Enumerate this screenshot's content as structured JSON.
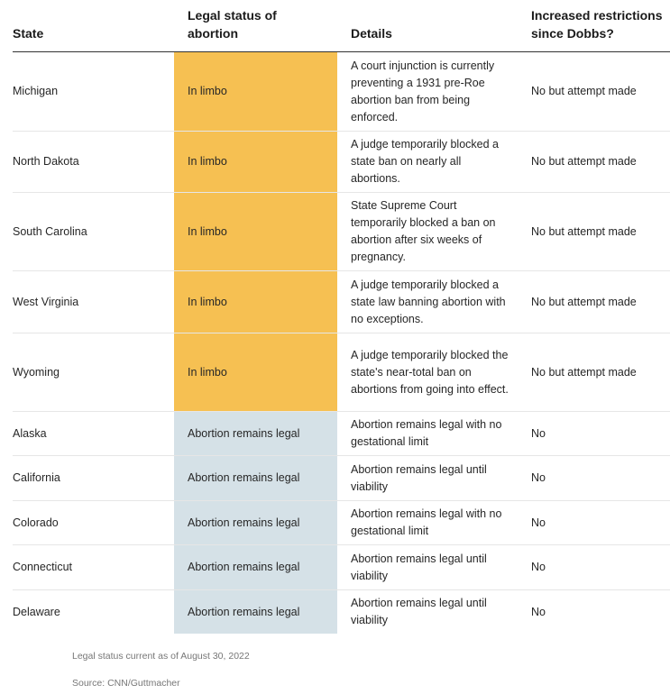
{
  "headers": {
    "state": "State",
    "status": "Legal status of abortion",
    "details": "Details",
    "restrictions": "Increased restrictions since Dobbs?"
  },
  "rows": [
    {
      "state": "Michigan",
      "status": "In limbo",
      "details": "A court injunction is currently preventing a 1931 pre-Roe abortion ban from being enforced.",
      "restrictions": "No but attempt made"
    },
    {
      "state": "North Dakota",
      "status": "In limbo",
      "details": "A judge temporarily blocked a state ban on nearly all abortions.",
      "restrictions": "No but attempt made"
    },
    {
      "state": "South Carolina",
      "status": "In limbo",
      "details": "State Supreme Court temporarily blocked a ban on abortion after six weeks of pregnancy.",
      "restrictions": "No but attempt made"
    },
    {
      "state": "West Virginia",
      "status": "In limbo",
      "details": "A judge temporarily blocked a state law banning abortion with no exceptions.",
      "restrictions": "No but attempt made"
    },
    {
      "state": "Wyoming",
      "status": "In limbo",
      "details": "A judge temporarily blocked the state's near-total ban on abortions from going into effect.",
      "restrictions": "No but attempt made"
    },
    {
      "state": "Alaska",
      "status": "Abortion remains legal",
      "details": "Abortion remains legal with no gestational limit",
      "restrictions": "No"
    },
    {
      "state": "California",
      "status": "Abortion remains legal",
      "details": "Abortion remains legal until viability",
      "restrictions": "No"
    },
    {
      "state": "Colorado",
      "status": "Abortion remains legal",
      "details": "Abortion remains legal with no gestational limit",
      "restrictions": "No"
    },
    {
      "state": "Connecticut",
      "status": "Abortion remains legal",
      "details": "Abortion remains legal until viability",
      "restrictions": "No"
    },
    {
      "state": "Delaware",
      "status": "Abortion remains legal",
      "details": "Abortion remains legal until viability",
      "restrictions": "No"
    }
  ],
  "colors": {
    "limbo": "#f6c052",
    "legal": "#d5e1e7"
  },
  "footer": {
    "note": "Legal status current as of August 30, 2022",
    "source": "Source: CNN/Guttmacher"
  }
}
